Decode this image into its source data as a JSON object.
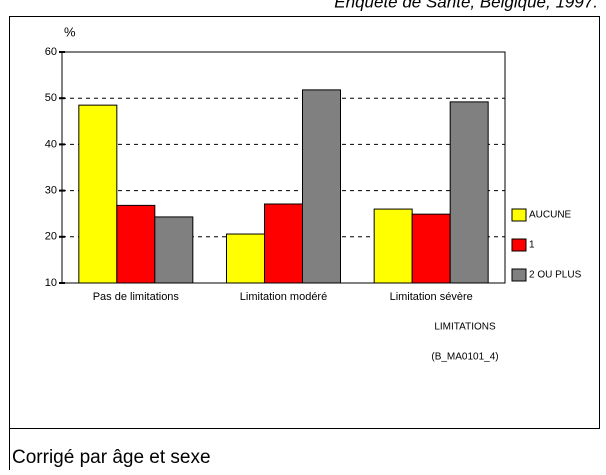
{
  "header": "Enquête de Santé, Belgique, 1997.",
  "footer": "Corrigé par âge et sexe",
  "chart_data": {
    "type": "bar",
    "y_label": "%",
    "x_label": "LIMITATIONS",
    "source": "(B_MA0101_4)",
    "categories": [
      "Pas de limitations",
      "Limitation modéré",
      "Limitation sévère"
    ],
    "series": [
      {
        "name": "AUCUNE",
        "color": "#ffff00",
        "values": [
          48.5,
          20.6,
          26.0
        ]
      },
      {
        "name": "1",
        "color": "#ff0000",
        "values": [
          26.8,
          27.1,
          24.9
        ]
      },
      {
        "name": "2 OU PLUS",
        "color": "#808080",
        "values": [
          24.3,
          51.8,
          49.2
        ]
      }
    ],
    "ylim": [
      10,
      60
    ],
    "yticks": [
      10,
      20,
      30,
      40,
      50,
      60
    ],
    "grid": true
  }
}
